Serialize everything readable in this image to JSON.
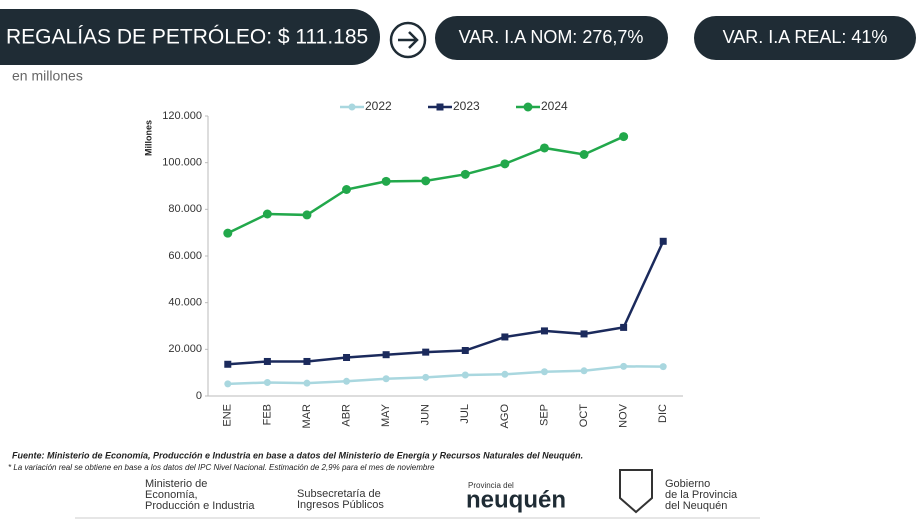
{
  "header": {
    "title": "REGALÍAS DE PETRÓLEO: $ 111.185",
    "nom": "VAR. I.A NOM: 276,7%",
    "real": "VAR. I.A REAL: 41%",
    "unit_note": "en millones"
  },
  "chart_data": {
    "type": "line",
    "y_label": "Millones",
    "categories": [
      "ENE",
      "FEB",
      "MAR",
      "ABR",
      "MAY",
      "JUN",
      "JUL",
      "AGO",
      "SEP",
      "OCT",
      "NOV",
      "DIC"
    ],
    "series": [
      {
        "name": "2022",
        "color": "#a9d7df",
        "marker": "diamond",
        "values": [
          5200,
          5800,
          5500,
          6300,
          7400,
          8000,
          9000,
          9300,
          10400,
          10800,
          12700,
          12600
        ]
      },
      {
        "name": "2023",
        "color": "#1b2a5c",
        "marker": "square",
        "values": [
          13600,
          14800,
          14800,
          16500,
          17700,
          18800,
          19500,
          25300,
          27900,
          26600,
          29400,
          66300
        ]
      },
      {
        "name": "2024",
        "color": "#22a84b",
        "marker": "circle",
        "values": [
          69800,
          78000,
          77600,
          88500,
          92000,
          92200,
          95000,
          99500,
          106300,
          103500,
          111185,
          null
        ]
      }
    ],
    "ylim": [
      0,
      120000
    ],
    "yticks": [
      0,
      {
        "value": 20000,
        "label": "20.000"
      },
      {
        "value": 40000,
        "label": "40.000"
      },
      {
        "value": 60000,
        "label": "60.000"
      },
      {
        "value": 80000,
        "label": "80.000"
      },
      {
        "value": 100000,
        "label": "100.000"
      },
      {
        "value": 120000,
        "label": "120.000"
      }
    ],
    "legend": "top"
  },
  "footer": {
    "source": "Fuente: Ministerio de Economía, Producción e Industria en base a datos del Ministerio de Energía y  Recursos Naturales del Neuquén.",
    "note": "* La variación real se obtiene en base a los datos del IPC Nivel Nacional. Estimación de 2,9% para el mes de noviembre",
    "ministry": [
      "Ministerio de",
      "Economía,",
      "Producción e Industria"
    ],
    "subsecretaria": [
      "Subsecretaría de",
      "Ingresos Públicos"
    ],
    "brand_small": "Provincia del",
    "brand": "neuquén",
    "gobierno": [
      "Gobierno",
      "de la Provincia",
      "del Neuquén"
    ]
  }
}
